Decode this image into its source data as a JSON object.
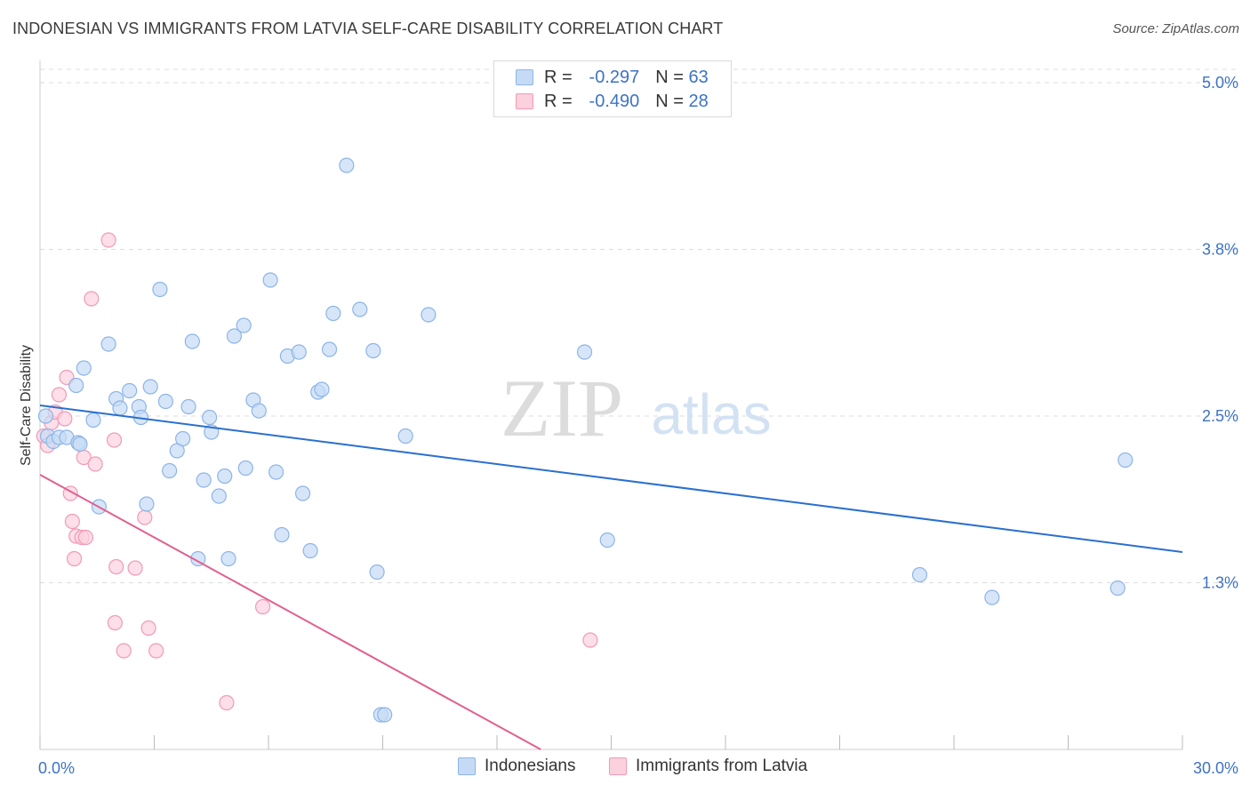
{
  "title": "INDONESIAN VS IMMIGRANTS FROM LATVIA SELF-CARE DISABILITY CORRELATION CHART",
  "source": "Source: ZipAtlas.com",
  "watermark": {
    "zip": "ZIP",
    "atlas": "atlas"
  },
  "legend_top": {
    "rows": [
      {
        "r_label": "R =",
        "r_value": "-0.297",
        "n_label": "N =",
        "n_value": "63",
        "color": "#8db4e8"
      },
      {
        "r_label": "R =",
        "r_value": "-0.490",
        "n_label": "N =",
        "n_value": "28",
        "color": "#f19ab7"
      }
    ]
  },
  "bottom_legend": {
    "series1": "Indonesians",
    "series2": "Immigrants from Latvia"
  },
  "colors": {
    "blue_fill": "#c5dbf5",
    "blue_stroke": "#8db4e8",
    "blue_line": "#2a6fd0",
    "pink_fill": "#fbd1de",
    "pink_stroke": "#f19ab7",
    "pink_line": "#e0608f",
    "tick_label": "#3d73c5",
    "grid": "#dddddd"
  },
  "chart_data": {
    "type": "scatter",
    "title": "INDONESIAN VS IMMIGRANTS FROM LATVIA SELF-CARE DISABILITY CORRELATION CHART",
    "xlabel": "",
    "ylabel": "Self-Care Disability",
    "xlim": [
      0,
      30
    ],
    "ylim": [
      0,
      5.1
    ],
    "x_tick_labels": [
      "0.0%",
      "30.0%"
    ],
    "y_ticks": [
      1.25,
      2.5,
      3.75,
      5.0
    ],
    "y_tick_labels": [
      "1.3%",
      "2.5%",
      "3.8%",
      "5.0%"
    ],
    "grid": true,
    "legend": "bottom-center",
    "series": [
      {
        "name": "Indonesians",
        "R": -0.297,
        "N": 63,
        "trend": {
          "x": [
            0.0,
            30.0
          ],
          "y": [
            2.58,
            1.48
          ]
        },
        "points": [
          [
            0.15,
            2.5
          ],
          [
            0.2,
            2.35
          ],
          [
            0.35,
            2.31
          ],
          [
            0.5,
            2.34
          ],
          [
            0.7,
            2.34
          ],
          [
            0.95,
            2.73
          ],
          [
            1.0,
            2.3
          ],
          [
            1.05,
            2.29
          ],
          [
            1.15,
            2.86
          ],
          [
            1.4,
            2.47
          ],
          [
            1.55,
            1.82
          ],
          [
            1.8,
            3.04
          ],
          [
            2.0,
            2.63
          ],
          [
            2.1,
            2.56
          ],
          [
            2.35,
            2.69
          ],
          [
            2.6,
            2.57
          ],
          [
            2.65,
            2.49
          ],
          [
            2.8,
            1.84
          ],
          [
            2.9,
            2.72
          ],
          [
            3.15,
            3.45
          ],
          [
            3.3,
            2.61
          ],
          [
            3.4,
            2.09
          ],
          [
            3.6,
            2.24
          ],
          [
            3.75,
            2.33
          ],
          [
            3.9,
            2.57
          ],
          [
            4.0,
            3.06
          ],
          [
            4.15,
            1.43
          ],
          [
            4.3,
            2.02
          ],
          [
            4.45,
            2.49
          ],
          [
            4.5,
            2.38
          ],
          [
            4.7,
            1.9
          ],
          [
            4.85,
            2.05
          ],
          [
            4.95,
            1.43
          ],
          [
            5.1,
            3.1
          ],
          [
            5.35,
            3.18
          ],
          [
            5.4,
            2.11
          ],
          [
            5.6,
            2.62
          ],
          [
            5.75,
            2.54
          ],
          [
            6.05,
            3.52
          ],
          [
            6.2,
            2.08
          ],
          [
            6.35,
            1.61
          ],
          [
            6.5,
            2.95
          ],
          [
            6.8,
            2.98
          ],
          [
            6.9,
            1.92
          ],
          [
            7.1,
            1.49
          ],
          [
            7.3,
            2.68
          ],
          [
            7.4,
            2.7
          ],
          [
            7.6,
            3.0
          ],
          [
            7.7,
            3.27
          ],
          [
            8.05,
            4.38
          ],
          [
            8.4,
            3.3
          ],
          [
            8.75,
            2.99
          ],
          [
            8.85,
            1.33
          ],
          [
            8.95,
            0.26
          ],
          [
            9.05,
            0.26
          ],
          [
            9.6,
            2.35
          ],
          [
            10.2,
            3.26
          ],
          [
            14.3,
            2.98
          ],
          [
            14.9,
            1.57
          ],
          [
            23.1,
            1.31
          ],
          [
            25.0,
            1.14
          ],
          [
            28.3,
            1.21
          ],
          [
            28.5,
            2.17
          ]
        ]
      },
      {
        "name": "Immigrants from Latvia",
        "R": -0.49,
        "N": 28,
        "trend": {
          "x": [
            0.0,
            13.15
          ],
          "y": [
            2.06,
            0.0
          ]
        },
        "points": [
          [
            0.1,
            2.35
          ],
          [
            0.2,
            2.28
          ],
          [
            0.3,
            2.45
          ],
          [
            0.4,
            2.53
          ],
          [
            0.5,
            2.66
          ],
          [
            0.65,
            2.48
          ],
          [
            0.7,
            2.79
          ],
          [
            0.8,
            1.92
          ],
          [
            0.85,
            1.71
          ],
          [
            0.9,
            1.43
          ],
          [
            0.95,
            1.6
          ],
          [
            1.1,
            1.59
          ],
          [
            1.15,
            2.19
          ],
          [
            1.2,
            1.59
          ],
          [
            1.35,
            3.38
          ],
          [
            1.45,
            2.14
          ],
          [
            1.8,
            3.82
          ],
          [
            1.95,
            2.32
          ],
          [
            1.97,
            0.95
          ],
          [
            2.0,
            1.37
          ],
          [
            2.2,
            0.74
          ],
          [
            2.5,
            1.36
          ],
          [
            2.75,
            1.74
          ],
          [
            2.85,
            0.91
          ],
          [
            3.05,
            0.74
          ],
          [
            4.9,
            0.35
          ],
          [
            5.85,
            1.07
          ],
          [
            14.45,
            0.82
          ]
        ]
      }
    ]
  }
}
